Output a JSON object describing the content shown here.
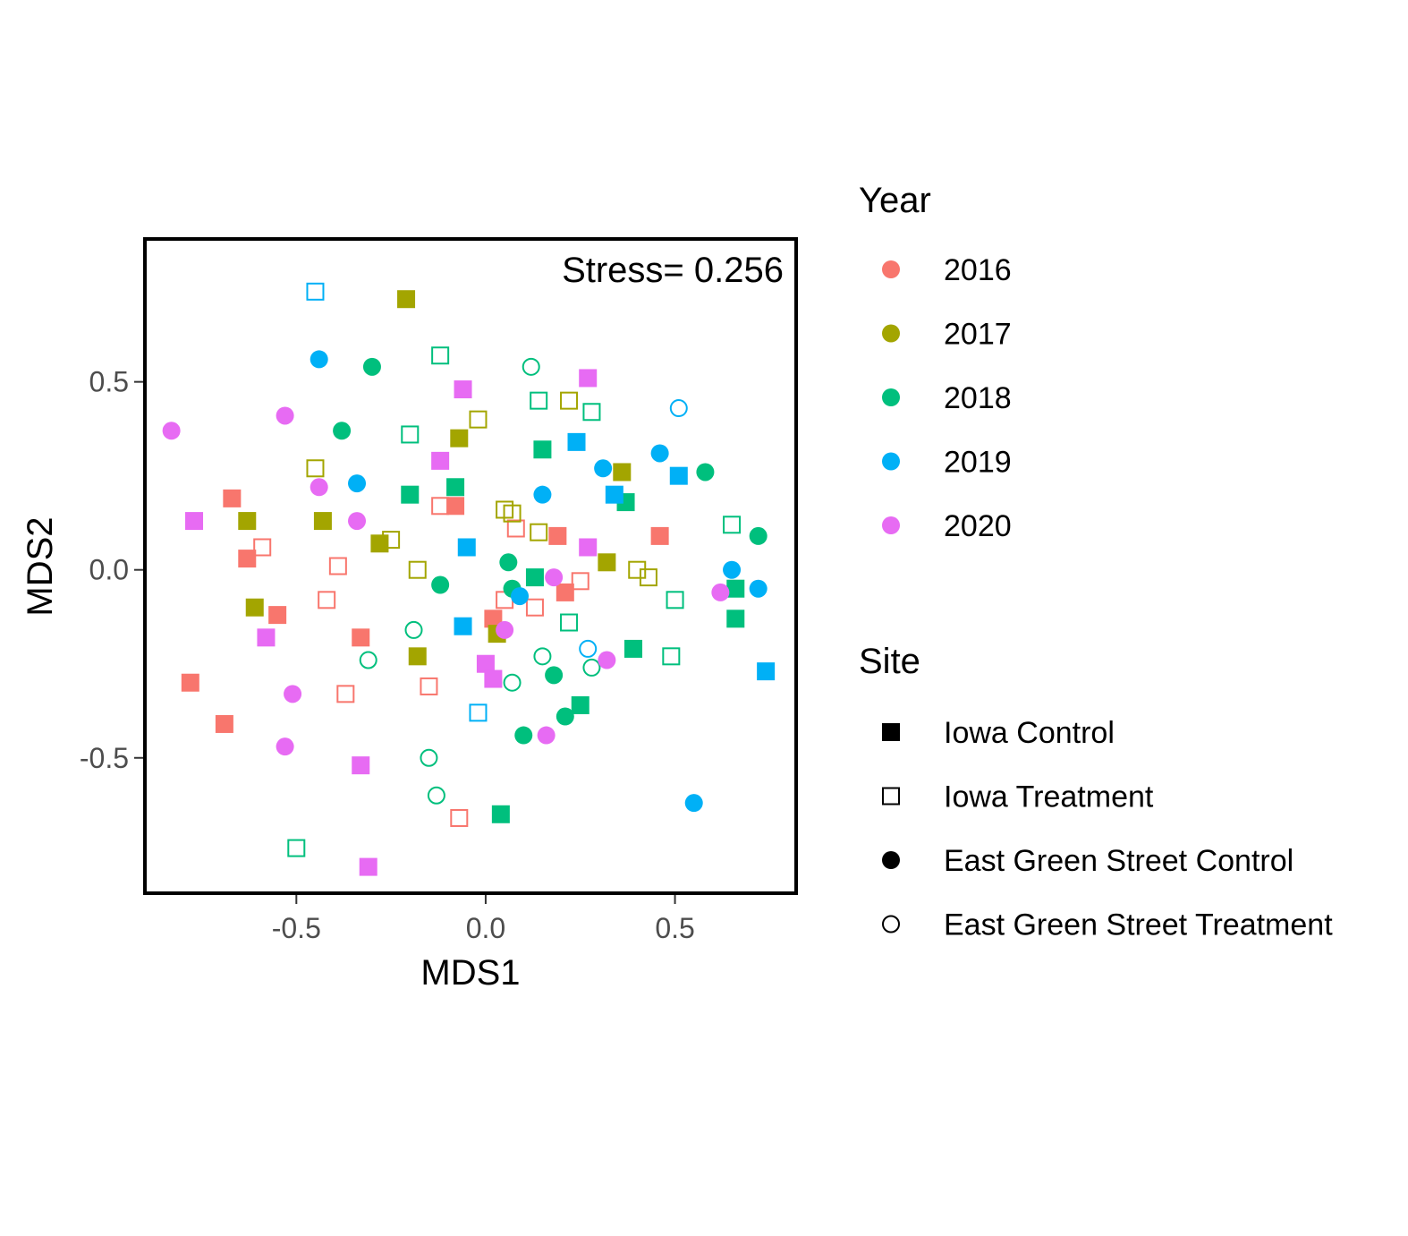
{
  "chart_data": {
    "type": "scatter",
    "xlabel": "MDS1",
    "ylabel": "MDS2",
    "xlim": [
      -0.9,
      0.82
    ],
    "ylim": [
      -0.86,
      0.88
    ],
    "x_ticks": [
      -0.5,
      0.0,
      0.5
    ],
    "y_ticks": [
      -0.5,
      0.0,
      0.5
    ],
    "x_tick_labels": [
      "-0.5",
      "0.0",
      "0.5"
    ],
    "y_tick_labels": [
      "-0.5",
      "0.0",
      "0.5"
    ],
    "grid": false,
    "annotation": "Stress= 0.256",
    "legend_position": "right",
    "legends": {
      "year": {
        "title": "Year",
        "entries": [
          {
            "label": "2016",
            "color": "#F8766D"
          },
          {
            "label": "2017",
            "color": "#A3A500"
          },
          {
            "label": "2018",
            "color": "#00BF7D"
          },
          {
            "label": "2019",
            "color": "#00B0F6"
          },
          {
            "label": "2020",
            "color": "#E76BF3"
          }
        ]
      },
      "site": {
        "title": "Site",
        "entries": [
          {
            "label": "Iowa Control",
            "shape": "square-filled"
          },
          {
            "label": "Iowa Treatment",
            "shape": "square-open"
          },
          {
            "label": "East Green Street Control",
            "shape": "circle-filled"
          },
          {
            "label": "East Green Street Treatment",
            "shape": "circle-open"
          }
        ]
      }
    },
    "series": [
      {
        "year": "2016",
        "site": "Iowa Control",
        "points": [
          [
            -0.67,
            0.19
          ],
          [
            -0.63,
            0.03
          ],
          [
            -0.55,
            -0.12
          ],
          [
            -0.78,
            -0.3
          ],
          [
            -0.69,
            -0.41
          ],
          [
            -0.33,
            -0.18
          ],
          [
            -0.08,
            0.17
          ],
          [
            0.19,
            0.09
          ],
          [
            0.21,
            -0.06
          ],
          [
            0.02,
            -0.13
          ],
          [
            0.46,
            0.09
          ]
        ]
      },
      {
        "year": "2016",
        "site": "Iowa Treatment",
        "points": [
          [
            -0.59,
            0.06
          ],
          [
            -0.39,
            0.01
          ],
          [
            -0.42,
            -0.08
          ],
          [
            -0.37,
            -0.33
          ],
          [
            -0.15,
            -0.31
          ],
          [
            -0.12,
            0.17
          ],
          [
            0.05,
            -0.08
          ],
          [
            0.08,
            0.11
          ],
          [
            0.13,
            -0.1
          ],
          [
            0.25,
            -0.03
          ],
          [
            -0.07,
            -0.66
          ]
        ]
      },
      {
        "year": "2017",
        "site": "Iowa Control",
        "points": [
          [
            -0.21,
            0.72
          ],
          [
            -0.07,
            0.35
          ],
          [
            -0.43,
            0.13
          ],
          [
            -0.63,
            0.13
          ],
          [
            -0.61,
            -0.1
          ],
          [
            -0.28,
            0.07
          ],
          [
            -0.18,
            -0.23
          ],
          [
            0.03,
            -0.17
          ],
          [
            0.32,
            0.02
          ],
          [
            0.36,
            0.26
          ]
        ]
      },
      {
        "year": "2017",
        "site": "Iowa Treatment",
        "points": [
          [
            -0.45,
            0.27
          ],
          [
            -0.25,
            0.08
          ],
          [
            -0.18,
            0.0
          ],
          [
            -0.02,
            0.4
          ],
          [
            0.05,
            0.16
          ],
          [
            0.07,
            0.15
          ],
          [
            0.14,
            0.1
          ],
          [
            0.22,
            0.45
          ],
          [
            0.4,
            0.0
          ],
          [
            0.43,
            -0.02
          ]
        ]
      },
      {
        "year": "2018",
        "site": "Iowa Control",
        "points": [
          [
            0.15,
            0.32
          ],
          [
            -0.2,
            0.2
          ],
          [
            -0.08,
            0.22
          ],
          [
            0.13,
            -0.02
          ],
          [
            0.37,
            0.18
          ],
          [
            0.39,
            -0.21
          ],
          [
            0.25,
            -0.36
          ],
          [
            0.04,
            -0.65
          ],
          [
            0.66,
            -0.05
          ],
          [
            0.66,
            -0.13
          ]
        ]
      },
      {
        "year": "2018",
        "site": "Iowa Treatment",
        "points": [
          [
            -0.12,
            0.57
          ],
          [
            -0.2,
            0.36
          ],
          [
            0.14,
            0.45
          ],
          [
            0.28,
            0.42
          ],
          [
            0.65,
            0.12
          ],
          [
            0.22,
            -0.14
          ],
          [
            0.5,
            -0.08
          ],
          [
            0.49,
            -0.23
          ],
          [
            -0.5,
            -0.74
          ]
        ]
      },
      {
        "year": "2018",
        "site": "East Green Street Control",
        "points": [
          [
            -0.3,
            0.54
          ],
          [
            -0.38,
            0.37
          ],
          [
            -0.12,
            -0.04
          ],
          [
            0.06,
            0.02
          ],
          [
            0.07,
            -0.05
          ],
          [
            0.18,
            -0.28
          ],
          [
            0.21,
            -0.39
          ],
          [
            0.1,
            -0.44
          ],
          [
            0.58,
            0.26
          ],
          [
            0.72,
            0.09
          ]
        ]
      },
      {
        "year": "2018",
        "site": "East Green Street Treatment",
        "points": [
          [
            0.12,
            0.54
          ],
          [
            -0.19,
            -0.16
          ],
          [
            -0.31,
            -0.24
          ],
          [
            0.15,
            -0.23
          ],
          [
            0.07,
            -0.3
          ],
          [
            -0.15,
            -0.5
          ],
          [
            -0.13,
            -0.6
          ],
          [
            0.28,
            -0.26
          ]
        ]
      },
      {
        "year": "2019",
        "site": "Iowa Control",
        "points": [
          [
            0.24,
            0.34
          ],
          [
            0.34,
            0.2
          ],
          [
            0.51,
            0.25
          ],
          [
            -0.05,
            0.06
          ],
          [
            -0.06,
            -0.15
          ],
          [
            0.74,
            -0.27
          ]
        ]
      },
      {
        "year": "2019",
        "site": "Iowa Treatment",
        "points": [
          [
            -0.45,
            0.74
          ],
          [
            -0.02,
            -0.38
          ]
        ]
      },
      {
        "year": "2019",
        "site": "East Green Street Control",
        "points": [
          [
            -0.44,
            0.56
          ],
          [
            -0.34,
            0.23
          ],
          [
            0.15,
            0.2
          ],
          [
            0.31,
            0.27
          ],
          [
            0.46,
            0.31
          ],
          [
            0.65,
            0.0
          ],
          [
            0.72,
            -0.05
          ],
          [
            0.09,
            -0.07
          ],
          [
            0.55,
            -0.62
          ]
        ]
      },
      {
        "year": "2019",
        "site": "East Green Street Treatment",
        "points": [
          [
            0.51,
            0.43
          ],
          [
            0.27,
            -0.21
          ]
        ]
      },
      {
        "year": "2020",
        "site": "Iowa Control",
        "points": [
          [
            0.27,
            0.51
          ],
          [
            -0.06,
            0.48
          ],
          [
            -0.12,
            0.29
          ],
          [
            -0.77,
            0.13
          ],
          [
            -0.58,
            -0.18
          ],
          [
            0.27,
            0.06
          ],
          [
            0.0,
            -0.25
          ],
          [
            0.02,
            -0.29
          ],
          [
            -0.33,
            -0.52
          ],
          [
            -0.31,
            -0.79
          ]
        ]
      },
      {
        "year": "2020",
        "site": "East Green Street Control",
        "points": [
          [
            -0.83,
            0.37
          ],
          [
            -0.53,
            0.41
          ],
          [
            -0.44,
            0.22
          ],
          [
            -0.34,
            0.13
          ],
          [
            0.18,
            -0.02
          ],
          [
            0.05,
            -0.16
          ],
          [
            0.32,
            -0.24
          ],
          [
            0.62,
            -0.06
          ],
          [
            -0.51,
            -0.33
          ],
          [
            -0.53,
            -0.47
          ],
          [
            0.16,
            -0.44
          ]
        ]
      }
    ]
  }
}
